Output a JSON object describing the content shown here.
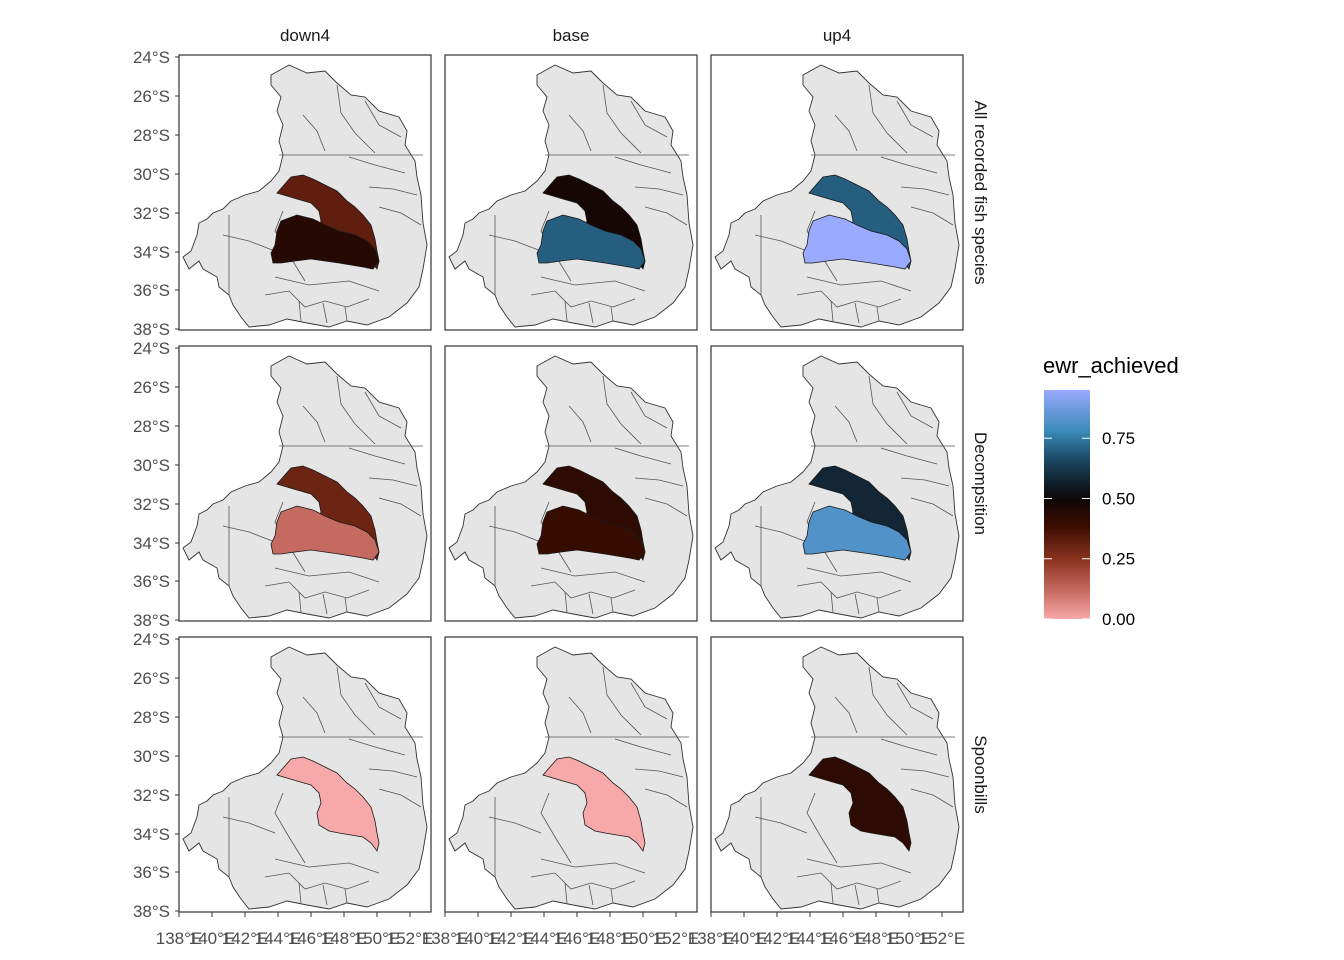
{
  "map_data": {
    "type": "faceted-choropleth",
    "columns": [
      "down4",
      "base",
      "up4"
    ],
    "rows": [
      "All recorded fish species",
      "Decompsition",
      "Spoonbills"
    ],
    "lat_ticks": [
      "24°S",
      "26°S",
      "28°S",
      "30°S",
      "32°S",
      "34°S",
      "36°S",
      "38°S"
    ],
    "lon_ticks": [
      "138°E",
      "140°E",
      "142°E",
      "144°E",
      "146°E",
      "148°E",
      "150°E",
      "152°E"
    ],
    "fill_values": [
      [
        {
          "north": 0.32,
          "south": 0.44
        },
        {
          "north": 0.48,
          "south": 0.7
        },
        {
          "north": 0.7,
          "south": 0.95
        }
      ],
      [
        {
          "north": 0.3,
          "south": 0.12
        },
        {
          "north": 0.42,
          "south": 0.4
        },
        {
          "north": 0.58,
          "south": 0.82
        }
      ],
      [
        {
          "north": 0.0,
          "south": null
        },
        {
          "north": 0.0,
          "south": null
        },
        {
          "north": 0.42,
          "south": null
        }
      ]
    ],
    "legend": {
      "title": "ewr_achieved",
      "ticks": [
        "0.00",
        "0.25",
        "0.50",
        "0.75"
      ],
      "tick_values": [
        0,
        0.25,
        0.5,
        0.75
      ],
      "range": [
        0,
        0.95
      ],
      "colors": [
        "#f7a8a8",
        "#c4685e",
        "#8a3320",
        "#3e0d00",
        "#100606",
        "#0f1a24",
        "#1c4a66",
        "#3a8ab8",
        "#9aaaff"
      ]
    },
    "background_fill": "#e5e5e5",
    "outline_color": "#333333"
  }
}
